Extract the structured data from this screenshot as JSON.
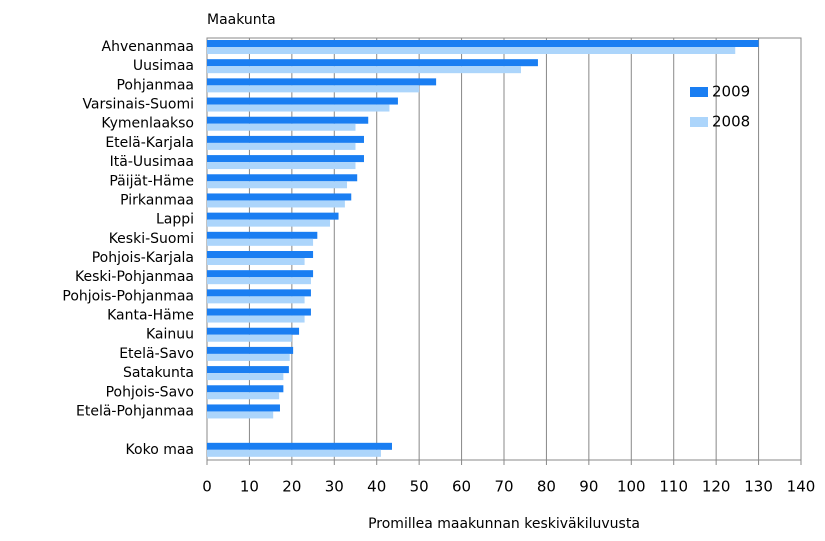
{
  "chart_data": {
    "type": "bar",
    "orientation": "horizontal",
    "y_axis_label": "Maakunta",
    "x_axis_label": "Promillea maakunnan keskiväkiluvusta",
    "categories": [
      "Ahvenanmaa",
      "Uusimaa",
      "Pohjanmaa",
      "Varsinais-Suomi",
      "Kymenlaakso",
      "Etelä-Karjala",
      "Itä-Uusimaa",
      "Päijät-Häme",
      "Pirkanmaa",
      "Lappi",
      "Keski-Suomi",
      "Pohjois-Karjala",
      "Keski-Pohjanmaa",
      "Pohjois-Pohjanmaa",
      "Kanta-Häme",
      "Kainuu",
      "Etelä-Savo",
      "Satakunta",
      "Pohjois-Savo",
      "Etelä-Pohjanmaa",
      null,
      "Koko maa"
    ],
    "series": [
      {
        "name": "2009",
        "color": "#1a7ef2",
        "values": [
          130,
          78,
          54,
          45,
          38,
          37,
          37,
          35.4,
          34,
          31,
          26,
          25,
          25,
          24.5,
          24.5,
          21.7,
          20.3,
          19.3,
          18,
          17.2,
          null,
          43.6
        ]
      },
      {
        "name": "2008",
        "color": "#acd5fb",
        "values": [
          124.5,
          74,
          50,
          43,
          35,
          35,
          35,
          33,
          32.5,
          29,
          25,
          23,
          24.5,
          23,
          23,
          20,
          19.5,
          18,
          17,
          15.6,
          null,
          41
        ]
      }
    ],
    "xlim": [
      0,
      140
    ],
    "xticks": [
      0,
      10,
      20,
      30,
      40,
      50,
      60,
      70,
      80,
      90,
      100,
      110,
      120,
      130,
      140
    ],
    "grid": true,
    "legend": "upper right"
  }
}
